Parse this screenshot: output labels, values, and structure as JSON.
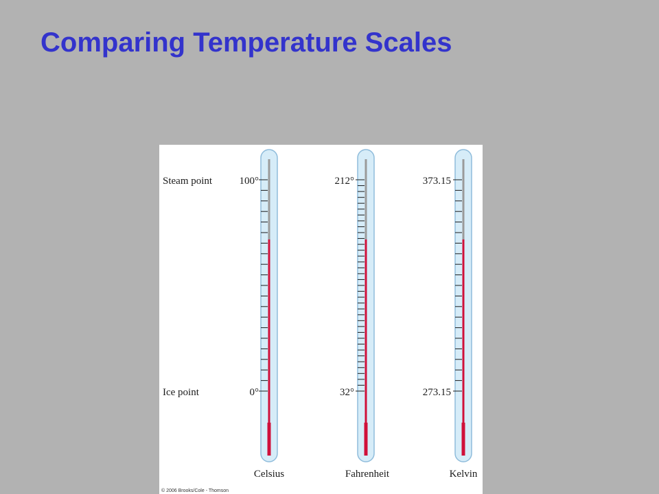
{
  "slide": {
    "title": "Comparing Temperature Scales"
  },
  "figure": {
    "fixed_points": {
      "upper": "Steam point",
      "lower": "Ice point"
    },
    "thermometers": [
      {
        "id": "celsius",
        "name": "Celsius",
        "upper_value": "100°",
        "lower_value": "0°",
        "minor_ticks": 20
      },
      {
        "id": "fahrenheit",
        "name": "Fahrenheit",
        "upper_value": "212°",
        "lower_value": "32°",
        "minor_ticks": 36
      },
      {
        "id": "kelvin",
        "name": "Kelvin",
        "upper_value": "373.15",
        "lower_value": "273.15",
        "minor_ticks": 20
      }
    ],
    "copyright": "© 2006 Brooks/Cole - Thomson",
    "colors": {
      "glass_fill": "#d6ecf8",
      "glass_stroke": "#8fbcdb",
      "bore": "#9a9a9a",
      "mercury": "#d0103a",
      "tick": "#1a1a1a"
    }
  }
}
